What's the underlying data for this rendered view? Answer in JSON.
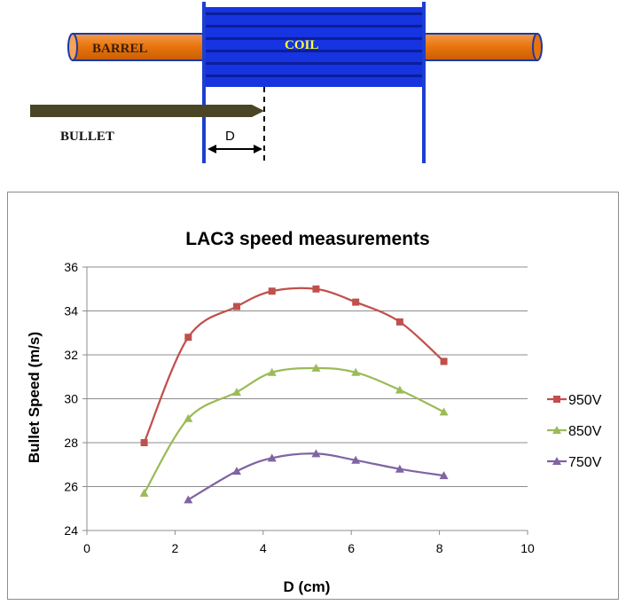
{
  "diagram": {
    "barrel_label": "BARREL",
    "coil_label": "COIL",
    "bullet_label": "BULLET",
    "distance_label": "D",
    "colors": {
      "barrel": "#e8730c",
      "coil": "#1230d8",
      "coil_stripe": "#0a1aa0",
      "bullet": "#4a4526",
      "coil_text": "#ffff33"
    }
  },
  "chart_data": {
    "type": "line",
    "title": "LAC3 speed measurements",
    "xlabel": "D (cm)",
    "ylabel": "Bullet Speed (m/s)",
    "xlim": [
      0,
      10
    ],
    "ylim": [
      24,
      36
    ],
    "xticks": [
      "0",
      "2",
      "4",
      "6",
      "8",
      "10"
    ],
    "yticks": [
      "24",
      "26",
      "28",
      "30",
      "32",
      "34",
      "36"
    ],
    "grid": "horizontal",
    "legend_position": "right",
    "series": [
      {
        "name": "950V",
        "color": "#c0504d",
        "marker": "square",
        "x": [
          1.3,
          2.3,
          3.4,
          4.2,
          5.2,
          6.1,
          7.1,
          8.1
        ],
        "y": [
          28.0,
          32.8,
          34.2,
          34.9,
          35.0,
          34.4,
          33.5,
          31.7
        ]
      },
      {
        "name": "850V",
        "color": "#9bbb59",
        "marker": "triangle",
        "x": [
          1.3,
          2.3,
          3.4,
          4.2,
          5.2,
          6.1,
          7.1,
          8.1
        ],
        "y": [
          25.7,
          29.1,
          30.3,
          31.2,
          31.4,
          31.2,
          30.4,
          29.4
        ]
      },
      {
        "name": "750V",
        "color": "#8064a2",
        "marker": "triangle",
        "x": [
          2.3,
          3.4,
          4.2,
          5.2,
          6.1,
          7.1,
          8.1
        ],
        "y": [
          25.4,
          26.7,
          27.3,
          27.5,
          27.2,
          26.8,
          26.5
        ]
      }
    ]
  }
}
